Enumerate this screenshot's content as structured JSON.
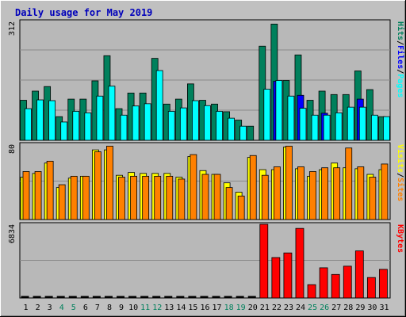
{
  "title": "Daily usage for May 2019",
  "colors": {
    "background": "#c0c0c0",
    "plot_bg": "#b8b8b8",
    "title": "#0000bb",
    "hits": "#00805c",
    "files": "#0000ff",
    "pages": "#00ffff",
    "visits": "#ffff00",
    "sites": "#ff8000",
    "kbytes": "#ff0000",
    "weekend_day": "#00805c",
    "weekday": "#000000"
  },
  "chart_data": [
    {
      "type": "bar",
      "panel": "hits-files-pages",
      "ylabel_parts": [
        "Pages",
        "/",
        "Files",
        "/",
        "Hits"
      ],
      "max_label": "312",
      "ylim": [
        0,
        312
      ],
      "grid": true,
      "categories": [
        "1",
        "2",
        "3",
        "4",
        "5",
        "6",
        "7",
        "8",
        "9",
        "10",
        "11",
        "12",
        "13",
        "14",
        "15",
        "16",
        "17",
        "18",
        "19",
        "20",
        "21",
        "22",
        "23",
        "24",
        "25",
        "26",
        "27",
        "28",
        "29",
        "30",
        "31"
      ],
      "weekend_days": [
        "4",
        "5",
        "11",
        "12",
        "18",
        "19",
        "25",
        "26"
      ],
      "series": [
        {
          "name": "Hits",
          "values": [
            105,
            129,
            141,
            62,
            108,
            108,
            156,
            222,
            83,
            124,
            124,
            215,
            95,
            108,
            148,
            105,
            95,
            75,
            53,
            37,
            247,
            305,
            157,
            224,
            105,
            129,
            120,
            120,
            182,
            133,
            62
          ]
        },
        {
          "name": "Files",
          "values": [
            0,
            0,
            0,
            0,
            0,
            0,
            0,
            0,
            0,
            0,
            0,
            0,
            0,
            0,
            0,
            0,
            0,
            0,
            0,
            0,
            0,
            155,
            0,
            118,
            0,
            71,
            0,
            0,
            108,
            0,
            0
          ]
        },
        {
          "name": "Pages",
          "values": [
            83,
            106,
            104,
            48,
            76,
            72,
            116,
            142,
            66,
            90,
            96,
            183,
            76,
            85,
            104,
            91,
            76,
            58,
            37,
            0,
            134,
            157,
            116,
            84,
            66,
            66,
            72,
            87,
            87,
            66,
            62
          ]
        }
      ]
    },
    {
      "type": "bar",
      "panel": "sites-visits",
      "ylabel_parts": [
        "Sites",
        "/",
        "Visits"
      ],
      "max_label": "80",
      "ylim": [
        0,
        80
      ],
      "grid": true,
      "categories": [
        "1",
        "2",
        "3",
        "4",
        "5",
        "6",
        "7",
        "8",
        "9",
        "10",
        "11",
        "12",
        "13",
        "14",
        "15",
        "16",
        "17",
        "18",
        "19",
        "20",
        "21",
        "22",
        "23",
        "24",
        "25",
        "26",
        "27",
        "28",
        "29",
        "30",
        "31"
      ],
      "series": [
        {
          "name": "Visits",
          "values": [
            45,
            49,
            60,
            34,
            44,
            46,
            74,
            74,
            47,
            50,
            49,
            49,
            49,
            45,
            67,
            52,
            48,
            39,
            29,
            66,
            53,
            53,
            77,
            54,
            46,
            53,
            60,
            55,
            54,
            48,
            53
          ]
        },
        {
          "name": "Sites",
          "values": [
            51,
            51,
            62,
            37,
            46,
            46,
            72,
            78,
            45,
            46,
            46,
            46,
            46,
            43,
            69,
            48,
            48,
            34,
            25,
            68,
            47,
            56,
            78,
            56,
            51,
            55,
            55,
            76,
            56,
            45,
            59
          ]
        }
      ]
    },
    {
      "type": "bar",
      "panel": "kbytes",
      "ylabel_parts": [
        "KBytes"
      ],
      "max_label": "6834",
      "ylim": [
        0,
        6834
      ],
      "grid": true,
      "categories": [
        "1",
        "2",
        "3",
        "4",
        "5",
        "6",
        "7",
        "8",
        "9",
        "10",
        "11",
        "12",
        "13",
        "14",
        "15",
        "16",
        "17",
        "18",
        "19",
        "20",
        "21",
        "22",
        "23",
        "24",
        "25",
        "26",
        "27",
        "28",
        "29",
        "30",
        "31"
      ],
      "series": [
        {
          "name": "KBytes",
          "values": [
            0,
            0,
            0,
            0,
            0,
            0,
            0,
            0,
            0,
            0,
            0,
            0,
            0,
            0,
            0,
            0,
            0,
            0,
            0,
            0,
            6834,
            3750,
            4177,
            6453,
            1234,
            2799,
            2183,
            2949,
            4366,
            1898,
            2657
          ]
        }
      ]
    }
  ]
}
